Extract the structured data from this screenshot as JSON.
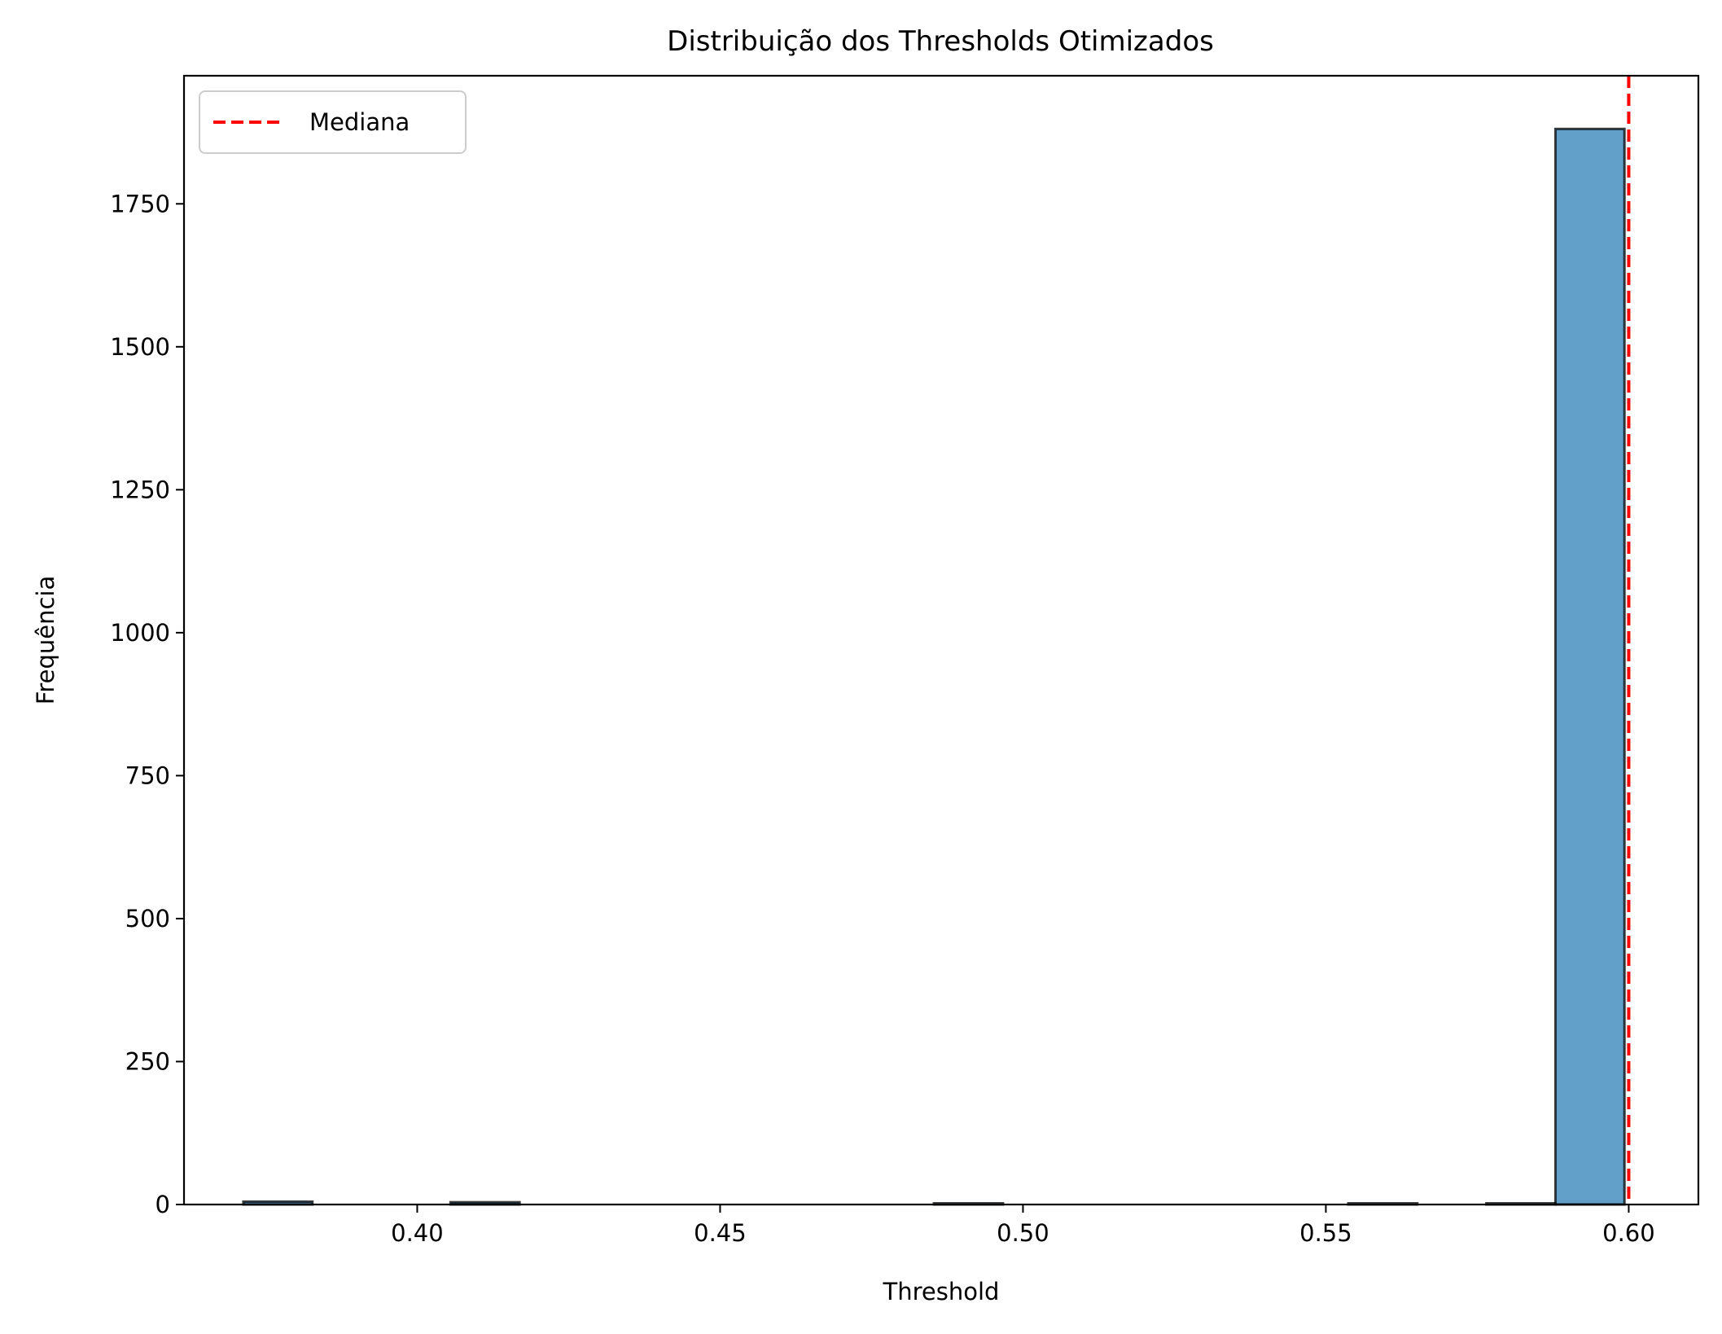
{
  "chart_data": {
    "type": "bar",
    "subtype": "histogram",
    "title": "Distribuição dos Thresholds Otimizados",
    "xlabel": "Threshold",
    "ylabel": "Frequência",
    "xlim": [
      0.3615,
      0.6115
    ],
    "ylim": [
      0,
      1974
    ],
    "xticks": [
      0.4,
      0.45,
      0.5,
      0.55,
      0.6
    ],
    "xtick_labels": [
      "0.40",
      "0.45",
      "0.50",
      "0.55",
      "0.60"
    ],
    "yticks": [
      0,
      250,
      500,
      750,
      1000,
      1250,
      1500,
      1750
    ],
    "ytick_labels": [
      "0",
      "250",
      "500",
      "750",
      "1000",
      "1250",
      "1500",
      "1750"
    ],
    "bins": [
      {
        "x0": 0.3713,
        "x1": 0.3827,
        "value": 5
      },
      {
        "x0": 0.3827,
        "x1": 0.3941,
        "value": 0
      },
      {
        "x0": 0.3941,
        "x1": 0.4055,
        "value": 0
      },
      {
        "x0": 0.4055,
        "x1": 0.4169,
        "value": 4
      },
      {
        "x0": 0.4169,
        "x1": 0.4283,
        "value": 0
      },
      {
        "x0": 0.4283,
        "x1": 0.4397,
        "value": 0
      },
      {
        "x0": 0.4397,
        "x1": 0.4511,
        "value": 0
      },
      {
        "x0": 0.4511,
        "x1": 0.4625,
        "value": 0
      },
      {
        "x0": 0.4625,
        "x1": 0.4739,
        "value": 0
      },
      {
        "x0": 0.4739,
        "x1": 0.4853,
        "value": 0
      },
      {
        "x0": 0.4853,
        "x1": 0.4967,
        "value": 2
      },
      {
        "x0": 0.4967,
        "x1": 0.5081,
        "value": 0
      },
      {
        "x0": 0.5081,
        "x1": 0.5195,
        "value": 0
      },
      {
        "x0": 0.5195,
        "x1": 0.5309,
        "value": 0
      },
      {
        "x0": 0.5309,
        "x1": 0.5423,
        "value": 0
      },
      {
        "x0": 0.5423,
        "x1": 0.5537,
        "value": 0
      },
      {
        "x0": 0.5537,
        "x1": 0.5651,
        "value": 1
      },
      {
        "x0": 0.5651,
        "x1": 0.5765,
        "value": 0
      },
      {
        "x0": 0.5765,
        "x1": 0.5879,
        "value": 1
      },
      {
        "x0": 0.5879,
        "x1": 0.5993,
        "value": 1881
      }
    ],
    "median_line": {
      "name": "Mediana",
      "x": 0.6,
      "color": "#ff0000",
      "style": "dashed"
    },
    "bar_color": "#1f77b4",
    "bar_alpha": 0.7,
    "edge_color": "#000000",
    "grid": false,
    "legend": {
      "placement": "upper-left",
      "entries": [
        "Mediana"
      ]
    }
  }
}
